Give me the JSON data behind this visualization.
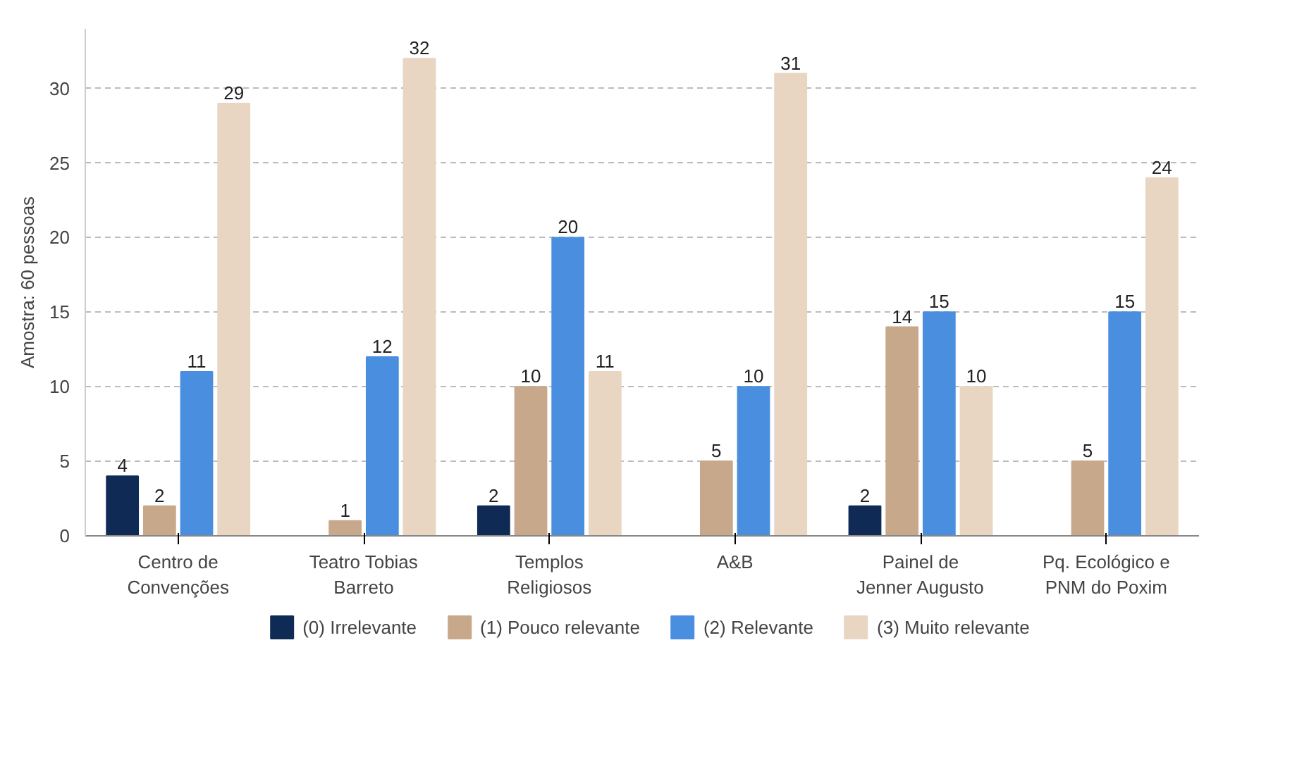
{
  "chart_data": {
    "type": "bar",
    "ylabel": "Amostra: 60 pessoas",
    "categories": [
      "Centro de\nConvenções",
      "Teatro Tobias\nBarreto",
      "Templos\nReligiosos",
      "A&B",
      "Painel de\nJenner Augusto",
      "Pq. Ecológico e\nPNM do Poxim"
    ],
    "series": [
      {
        "name": "(0) Irrelevante",
        "color": "#0f2b55",
        "values": [
          4,
          0,
          2,
          0,
          2,
          0
        ],
        "value_labels": [
          "4",
          null,
          "2",
          null,
          "2",
          null
        ]
      },
      {
        "name": "(1) Pouco relevante",
        "color": "#c8a88a",
        "values": [
          2,
          1,
          10,
          5,
          14,
          5
        ],
        "value_labels": [
          "2",
          "1",
          "10",
          "5",
          "14",
          "5"
        ]
      },
      {
        "name": "(2) Relevante",
        "color": "#4a8fdf",
        "values": [
          11,
          12,
          20,
          10,
          15,
          15
        ],
        "value_labels": [
          "11",
          "12",
          "20",
          "10",
          "15",
          "15"
        ]
      },
      {
        "name": "(3) Muito relevante",
        "color": "#e8d6c3",
        "values": [
          29,
          32,
          11,
          31,
          10,
          24
        ],
        "value_labels": [
          "29",
          "32",
          "11",
          "31",
          "10",
          "24"
        ]
      }
    ],
    "ylim": [
      0,
      34
    ],
    "yticks": [
      0,
      5,
      10,
      15,
      20,
      25,
      30
    ],
    "grid": "y",
    "legend": "bottom"
  }
}
